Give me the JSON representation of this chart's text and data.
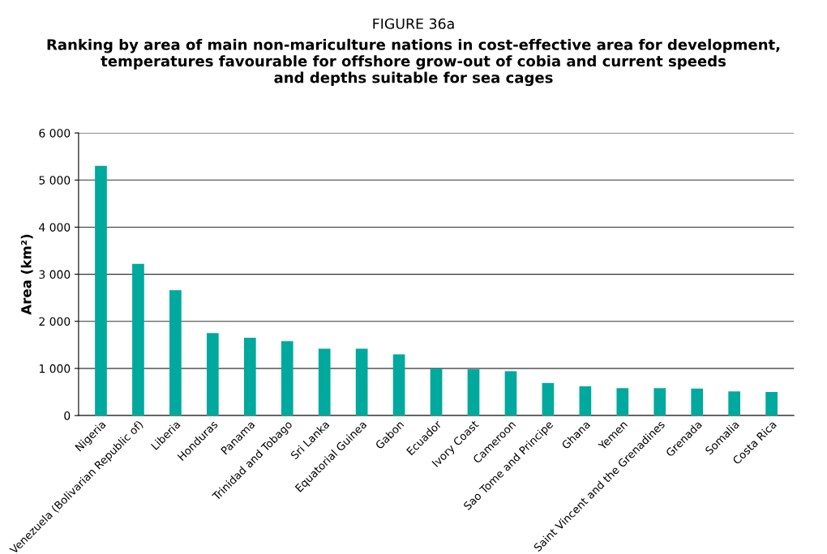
{
  "chart_data": {
    "type": "bar",
    "title": "FIGURE 36a",
    "subtitle": "Ranking by area of main non-mariculture nations in cost-effective area for development,\ntemperatures favourable for offshore grow-out of cobia and current speeds\nand depths suitable for sea cages",
    "ylabel": "Area (km²)",
    "categories": [
      "Nigeria",
      "Venezuela (Bolivarian Republic of)",
      "Liberia",
      "Honduras",
      "Panama",
      "Trinidad and Tobago",
      "Sri Lanka",
      "Equatorial Guinea",
      "Gabon",
      "Ecuador",
      "Ivory Coast",
      "Cameroon",
      "Sao Tome and Principe",
      "Ghana",
      "Yemen",
      "Saint Vincent and the Grenadines",
      "Grenada",
      "Somalia",
      "Costa Rica"
    ],
    "values": [
      5300,
      3220,
      2660,
      1750,
      1650,
      1580,
      1420,
      1420,
      1300,
      1000,
      980,
      940,
      690,
      620,
      580,
      580,
      570,
      510,
      500
    ],
    "color": "#00a99d",
    "ylim": [
      0,
      6000
    ],
    "yticks": [
      0,
      {
        "value": 1000,
        "label": "1 000"
      },
      {
        "value": 2000,
        "label": "2 000"
      },
      {
        "value": 3000,
        "label": "3 000"
      },
      {
        "value": 4000,
        "label": "4 000"
      },
      {
        "value": 5000,
        "label": "5 000"
      },
      {
        "value": 6000,
        "label": "6 000"
      }
    ],
    "grid": "y"
  }
}
